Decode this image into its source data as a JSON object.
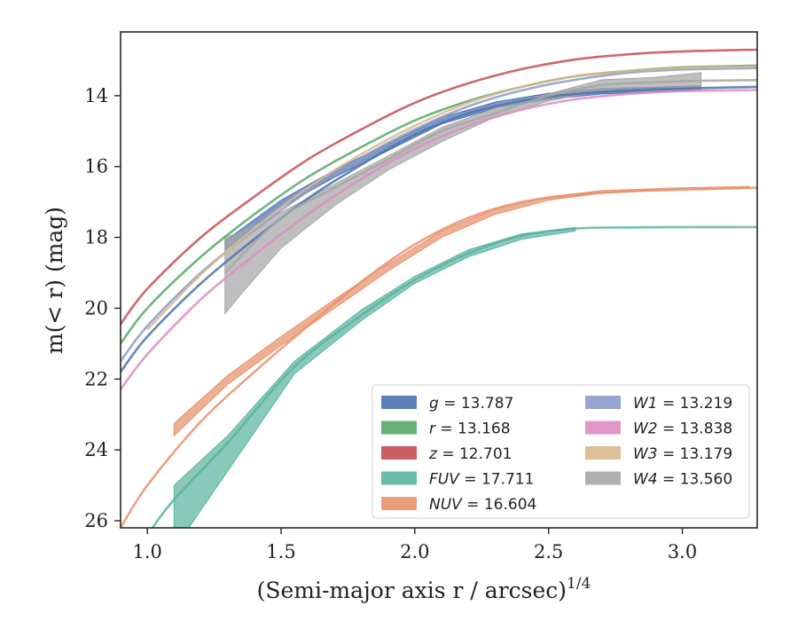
{
  "chart_data": {
    "type": "line",
    "xlabel": "(Semi-major axis r / arcsec)",
    "xlabel_superscript": "1/4",
    "ylabel": "m(< r) (mag)",
    "xlim": [
      0.9,
      3.28
    ],
    "ylim": [
      26.2,
      12.2
    ],
    "y_inverted": true,
    "x_ticks": [
      1.0,
      1.5,
      2.0,
      2.5,
      3.0
    ],
    "x_tick_labels": [
      "1.0",
      "1.5",
      "2.0",
      "2.5",
      "3.0"
    ],
    "y_ticks": [
      14,
      16,
      18,
      20,
      22,
      24,
      26
    ],
    "y_tick_labels": [
      "14",
      "16",
      "18",
      "20",
      "22",
      "24",
      "26"
    ],
    "grid": false,
    "legend_position": "lower-right",
    "series": [
      {
        "name": "g",
        "total": "13.787",
        "color": "#4c72b0",
        "x": [
          0.9,
          1.0,
          1.2,
          1.4,
          1.6,
          1.8,
          2.0,
          2.2,
          2.4,
          2.6,
          2.8,
          3.0,
          3.28
        ],
        "y": [
          21.8,
          20.8,
          19.3,
          18.05,
          16.9,
          15.95,
          15.1,
          14.5,
          14.15,
          13.95,
          13.85,
          13.8,
          13.75
        ],
        "band_x": [
          1.29,
          1.5,
          1.7,
          1.9,
          2.1,
          2.3,
          2.5,
          2.7,
          3.07
        ],
        "band_lo": [
          18.35,
          17.15,
          16.3,
          15.55,
          14.8,
          14.35,
          14.1,
          13.95,
          13.85
        ],
        "band_hi": [
          18.1,
          16.95,
          16.1,
          15.35,
          14.62,
          14.18,
          13.93,
          13.8,
          13.72
        ]
      },
      {
        "name": "r",
        "total": "13.168",
        "color": "#55a868",
        "x": [
          0.9,
          1.0,
          1.2,
          1.4,
          1.6,
          1.8,
          2.0,
          2.2,
          2.4,
          2.6,
          2.8,
          3.0,
          3.28
        ],
        "y": [
          21.0,
          20.0,
          18.55,
          17.35,
          16.3,
          15.45,
          14.7,
          14.15,
          13.75,
          13.45,
          13.3,
          13.2,
          13.15
        ]
      },
      {
        "name": "z",
        "total": "12.701",
        "color": "#c44e52",
        "x": [
          0.9,
          1.0,
          1.2,
          1.4,
          1.6,
          1.8,
          2.0,
          2.2,
          2.4,
          2.6,
          2.8,
          3.0,
          3.28
        ],
        "y": [
          20.45,
          19.45,
          18.0,
          16.85,
          15.8,
          14.95,
          14.2,
          13.65,
          13.25,
          12.98,
          12.83,
          12.75,
          12.7
        ]
      },
      {
        "name": "FUV",
        "total": "17.711",
        "color": "#5ab4a0",
        "x": [
          0.9,
          1.0,
          1.1,
          1.3,
          1.55,
          1.8,
          2.0,
          2.2,
          2.4,
          2.6,
          2.8,
          3.0,
          3.28
        ],
        "y": [
          27.5,
          26.4,
          25.4,
          23.8,
          21.65,
          20.2,
          19.2,
          18.45,
          17.95,
          17.75,
          17.72,
          17.71,
          17.71
        ],
        "band_x": [
          1.1,
          1.3,
          1.55,
          1.8,
          2.0,
          2.2,
          2.4,
          2.6
        ],
        "band_lo": [
          26.8,
          24.6,
          21.85,
          20.35,
          19.3,
          18.55,
          18.05,
          17.82
        ],
        "band_hi": [
          25.0,
          23.6,
          21.5,
          20.05,
          19.1,
          18.35,
          17.9,
          17.72
        ]
      },
      {
        "name": "NUV",
        "total": "16.604",
        "color": "#e8926b",
        "x": [
          0.9,
          1.0,
          1.2,
          1.4,
          1.6,
          1.8,
          2.0,
          2.2,
          2.4,
          2.6,
          2.8,
          3.0,
          3.28
        ],
        "y": [
          26.2,
          25.0,
          23.2,
          21.8,
          20.5,
          19.25,
          18.2,
          17.45,
          17.0,
          16.8,
          16.7,
          16.65,
          16.6
        ],
        "band_x": [
          1.1,
          1.3,
          1.5,
          1.7,
          1.9,
          2.1,
          2.3,
          2.5,
          2.7,
          3.0,
          3.25
        ],
        "band_lo": [
          23.6,
          22.15,
          21.05,
          20.0,
          18.95,
          18.0,
          17.35,
          16.95,
          16.75,
          16.65,
          16.6
        ],
        "band_hi": [
          23.25,
          21.9,
          20.8,
          19.75,
          18.75,
          17.82,
          17.2,
          16.85,
          16.68,
          16.6,
          16.56
        ]
      },
      {
        "name": "W1",
        "total": "13.219",
        "color": "#8c9ac8",
        "x": [
          0.9,
          1.0,
          1.2,
          1.4,
          1.6,
          1.8,
          2.0,
          2.2,
          2.4,
          2.6,
          2.8,
          3.0,
          3.28
        ],
        "y": [
          21.5,
          20.5,
          19.0,
          17.8,
          16.7,
          15.75,
          14.95,
          14.3,
          13.85,
          13.55,
          13.35,
          13.26,
          13.22
        ]
      },
      {
        "name": "W2",
        "total": "13.838",
        "color": "#dd8cc0",
        "x": [
          0.9,
          1.0,
          1.2,
          1.4,
          1.6,
          1.8,
          2.0,
          2.2,
          2.4,
          2.6,
          2.8,
          3.0,
          3.28
        ],
        "y": [
          22.3,
          21.3,
          19.75,
          18.5,
          17.35,
          16.35,
          15.5,
          14.85,
          14.4,
          14.1,
          13.95,
          13.87,
          13.84
        ]
      },
      {
        "name": "W3",
        "total": "13.179",
        "color": "#d9b98c",
        "x": [
          1.0,
          1.2,
          1.4,
          1.6,
          1.8,
          2.0,
          2.2,
          2.4,
          2.6,
          2.8,
          3.0,
          3.28
        ],
        "y": [
          20.6,
          19.05,
          17.75,
          16.6,
          15.65,
          14.85,
          14.2,
          13.75,
          13.45,
          13.3,
          13.22,
          13.18
        ]
      },
      {
        "name": "W4",
        "total": "13.560",
        "color": "#a6a6a6",
        "x": [
          1.29,
          1.5,
          1.7,
          1.9,
          2.1,
          2.3,
          2.5,
          2.7,
          2.9,
          3.07,
          3.28
        ],
        "y": [
          19.0,
          17.45,
          16.6,
          15.8,
          15.0,
          14.5,
          14.0,
          13.7,
          13.62,
          13.58,
          13.56
        ],
        "band_x": [
          1.29,
          1.35,
          1.5,
          1.7,
          1.9,
          2.1,
          2.3,
          2.5,
          2.7,
          2.9,
          3.07
        ],
        "band_lo": [
          20.15,
          19.6,
          18.3,
          17.1,
          16.1,
          15.3,
          14.6,
          14.15,
          13.85,
          13.8,
          13.85
        ],
        "band_hi": [
          18.0,
          17.85,
          17.3,
          16.5,
          15.7,
          14.9,
          14.35,
          13.95,
          13.55,
          13.48,
          13.35
        ]
      }
    ]
  }
}
